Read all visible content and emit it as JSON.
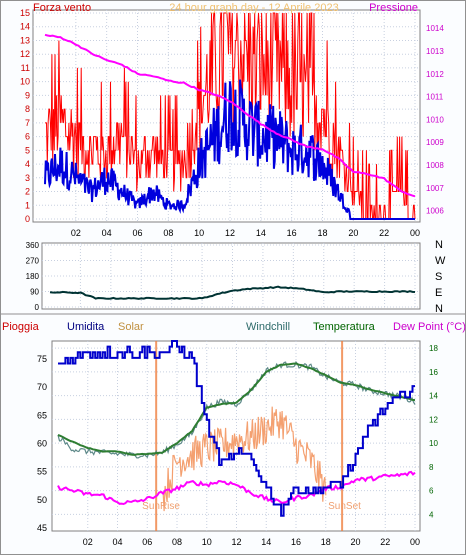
{
  "panel1": {
    "title": "24 hour graph day - 12 Aprile 2023",
    "left_label": "Forza vento",
    "right_label": "Pressione",
    "y_left_ticks": [
      "0",
      "1",
      "2",
      "3",
      "4",
      "5",
      "6",
      "7",
      "8",
      "9",
      "10",
      "11",
      "12",
      "13",
      "14",
      "15"
    ],
    "y_right_ticks": [
      "1006",
      "1007",
      "1008",
      "1009",
      "1010",
      "1011",
      "1012",
      "1013",
      "1014"
    ],
    "x_ticks": [
      "02",
      "04",
      "06",
      "08",
      "10",
      "12",
      "14",
      "16",
      "18",
      "20",
      "22",
      "00"
    ]
  },
  "panel2": {
    "y_ticks": [
      "360",
      "270",
      "180",
      "90",
      "0"
    ],
    "compass": [
      "N",
      "W",
      "S",
      "E",
      "N"
    ]
  },
  "panel3": {
    "legend": [
      {
        "label": "Pioggia",
        "color": "#cc0000"
      },
      {
        "label": "Umidita",
        "color": "#000080"
      },
      {
        "label": "Solar",
        "color": "#c09040"
      },
      {
        "label": "Windchill",
        "color": "#2e6b6b"
      },
      {
        "label": "Temperatura",
        "color": "#006400"
      },
      {
        "label": "Dew Point (°C)",
        "color": "#cc00cc"
      }
    ],
    "y_left_ticks": [
      "45",
      "50",
      "55",
      "60",
      "65",
      "70",
      "75"
    ],
    "y_right_ticks": [
      "4",
      "6",
      "8",
      "10",
      "12",
      "14",
      "16",
      "18"
    ],
    "x_ticks": [
      "02",
      "04",
      "06",
      "08",
      "10",
      "12",
      "14",
      "16",
      "18",
      "20",
      "22",
      "00"
    ],
    "sunrise_label": "SunRise",
    "sunset_label": "SunSet"
  },
  "colors": {
    "gust": "#ff0000",
    "wind": "#0000dd",
    "pressure": "#ff00ff",
    "direction": "#003333",
    "humidity": "#0000cc",
    "temperature": "#2e7d32",
    "windchill": "#5f8a8a",
    "solar": "#f4a070",
    "dewpoint": "#ff00ff",
    "sun": "#f08040"
  },
  "chart_data": [
    {
      "type": "line",
      "title": "24 hour graph day - 12 Aprile 2023",
      "xlabel": "",
      "ylabel": "Forza vento",
      "y2label": "Pressione",
      "xlim": [
        0,
        24
      ],
      "ylim": [
        0,
        15
      ],
      "y2lim": [
        1005.5,
        1014.8
      ],
      "x_hours": [
        0,
        1,
        2,
        3,
        4,
        5,
        6,
        7,
        8,
        9,
        10,
        11,
        12,
        13,
        14,
        15,
        16,
        17,
        18,
        19,
        20,
        21,
        22,
        23,
        24
      ],
      "series": [
        {
          "name": "Forza vento",
          "axis": "left",
          "values": [
            3,
            4,
            3,
            2,
            3,
            2,
            1,
            2,
            1,
            1,
            4,
            6,
            8,
            7,
            6,
            6,
            5,
            5,
            4,
            2,
            0,
            0,
            0,
            0,
            0
          ]
        },
        {
          "name": "",
          "axis": "left",
          "values": [
            6,
            7,
            6,
            5,
            5,
            6,
            4,
            5,
            4,
            4,
            8,
            11,
            13,
            12,
            11,
            11,
            10,
            9,
            8,
            5,
            2,
            1,
            1,
            2,
            1
          ]
        },
        {
          "name": "Pressione",
          "axis": "right",
          "values": [
            1013.7,
            1013.6,
            1013.3,
            1012.9,
            1012.6,
            1012.4,
            1012.0,
            1011.9,
            1011.7,
            1011.6,
            1011.3,
            1011.1,
            1010.8,
            1010.3,
            1009.8,
            1009.4,
            1009.1,
            1008.8,
            1008.7,
            1008.3,
            1007.7,
            1007.6,
            1007.4,
            1006.9,
            1006.6
          ]
        }
      ]
    },
    {
      "type": "line",
      "xlim": [
        0,
        24
      ],
      "ylim": [
        0,
        360
      ],
      "x_hours": [
        0,
        1,
        2,
        3,
        4,
        5,
        6,
        7,
        8,
        9,
        10,
        11,
        12,
        13,
        14,
        15,
        16,
        17,
        18,
        19,
        20,
        21,
        22,
        23,
        24
      ],
      "series": [
        {
          "name": "",
          "values": [
            85,
            85,
            82,
            50,
            50,
            50,
            50,
            50,
            50,
            50,
            50,
            75,
            95,
            105,
            110,
            115,
            110,
            100,
            85,
            90,
            90,
            90,
            90,
            90,
            90
          ]
        }
      ]
    },
    {
      "type": "line",
      "xlim": [
        0,
        24
      ],
      "ylim": [
        45,
        78
      ],
      "y2lim": [
        2.6,
        18.6
      ],
      "x_hours": [
        0,
        1,
        2,
        3,
        4,
        5,
        6,
        7,
        8,
        9,
        10,
        11,
        12,
        13,
        14,
        15,
        16,
        17,
        18,
        19,
        20,
        21,
        22,
        23,
        24
      ],
      "series": [
        {
          "name": "Umidita",
          "axis": "left",
          "values": [
            74,
            75,
            76,
            76,
            76,
            76,
            76,
            76,
            77,
            75,
            63,
            56,
            58,
            57,
            52,
            48,
            52,
            51,
            52,
            53,
            57,
            63,
            66,
            68,
            70
          ]
        },
        {
          "name": "Temperatura",
          "axis": "right",
          "values": [
            10.7,
            10.1,
            9.6,
            9.3,
            9.3,
            9.0,
            9.1,
            9.2,
            10.0,
            11.0,
            13.0,
            13.3,
            13.4,
            14.5,
            16.0,
            16.6,
            16.7,
            16.3,
            15.7,
            15.1,
            14.9,
            14.5,
            14.2,
            13.9,
            13.6
          ]
        },
        {
          "name": "Windchill",
          "axis": "right",
          "values": [
            10.5,
            9.5,
            9.3,
            9.2,
            9.1,
            9.0,
            9.0,
            9.2,
            9.9,
            10.8,
            13.0,
            13.5,
            13.3,
            14.5,
            16.1,
            16.6,
            16.6,
            16.4,
            15.6,
            15.1,
            14.9,
            14.4,
            14.2,
            13.9,
            13.5
          ]
        },
        {
          "name": "Dew Point (°C)",
          "axis": "right",
          "values": [
            6.3,
            6.0,
            5.7,
            5.6,
            5.0,
            5.0,
            5.3,
            5.8,
            6.2,
            6.7,
            6.5,
            6.8,
            6.5,
            5.8,
            5.3,
            5.0,
            5.4,
            5.6,
            6.2,
            6.3,
            6.9,
            7.0,
            7.2,
            7.3,
            7.5
          ]
        },
        {
          "name": "Solar",
          "axis": "right",
          "values": [
            null,
            null,
            null,
            null,
            null,
            null,
            null,
            5.3,
            8.5,
            9.0,
            9.6,
            9.8,
            10.3,
            10.5,
            11.3,
            12.0,
            9.8,
            8.5,
            6.0,
            null,
            null,
            null,
            null,
            null,
            null
          ]
        }
      ],
      "sunrise_hour": 6.6,
      "sunset_hour": 19.1
    }
  ]
}
